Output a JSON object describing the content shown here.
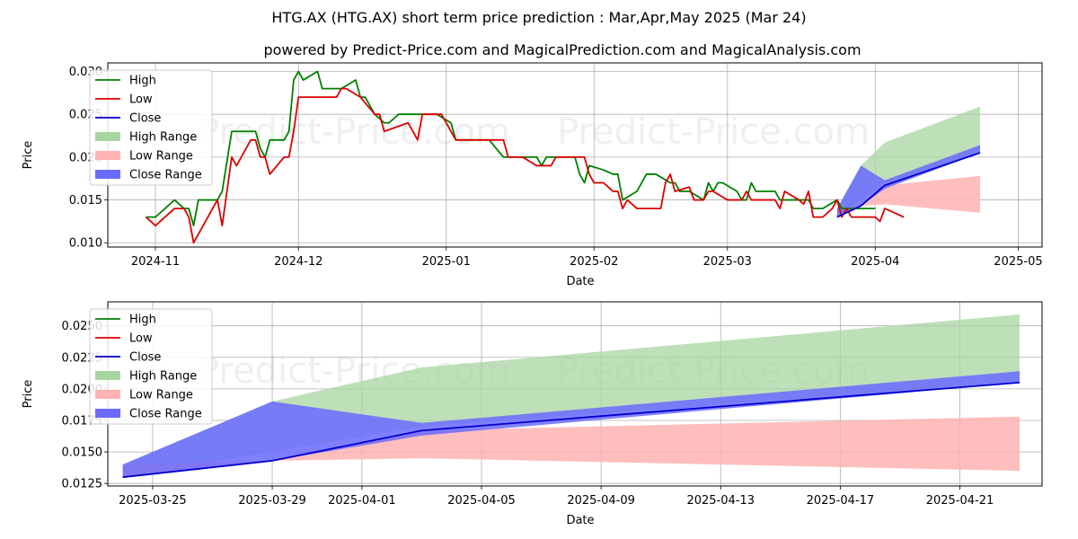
{
  "title": "HTG.AX (HTG.AX) short term price prediction : Mar,Apr,May 2025 (Mar 24)",
  "subtitle": "powered by Predict-Price.com and MagicalPrediction.com and MagicalAnalysis.com",
  "watermark": "Predict-Price.com",
  "colors": {
    "high": "#008000",
    "low": "#dd0000",
    "close": "#0000cc",
    "high_range": "#a8d5a2",
    "low_range": "#ffb3b3",
    "close_range": "#6a6aff",
    "grid": "#b0b0b0"
  },
  "chart_data": [
    {
      "type": "line",
      "xlabel": "Date",
      "ylabel": "Price",
      "ylim": [
        0.0095,
        0.031
      ],
      "xlim": [
        "2024-10-22",
        "2025-05-06"
      ],
      "grid": true,
      "legend_position": "upper left",
      "x_ticks": [
        "2024-11",
        "2024-12",
        "2025-01",
        "2025-02",
        "2025-03",
        "2025-04",
        "2025-05"
      ],
      "y_ticks": [
        "0.010",
        "0.015",
        "0.020",
        "0.025",
        "0.030"
      ],
      "legend": [
        "High",
        "Low",
        "Close",
        "High Range",
        "Low Range",
        "Close Range"
      ],
      "series": [
        {
          "name": "High",
          "points": [
            [
              "2024-10-30",
              0.013
            ],
            [
              "2024-11-01",
              0.013
            ],
            [
              "2024-11-05",
              0.015
            ],
            [
              "2024-11-07",
              0.014
            ],
            [
              "2024-11-08",
              0.014
            ],
            [
              "2024-11-09",
              0.012
            ],
            [
              "2024-11-10",
              0.015
            ],
            [
              "2024-11-13",
              0.015
            ],
            [
              "2024-11-14",
              0.015
            ],
            [
              "2024-11-15",
              0.016
            ],
            [
              "2024-11-17",
              0.023
            ],
            [
              "2024-11-20",
              0.023
            ],
            [
              "2024-11-22",
              0.023
            ],
            [
              "2024-11-23",
              0.021
            ],
            [
              "2024-11-24",
              0.02
            ],
            [
              "2024-11-25",
              0.022
            ],
            [
              "2024-11-27",
              0.022
            ],
            [
              "2024-11-28",
              0.022
            ],
            [
              "2024-11-29",
              0.023
            ],
            [
              "2024-11-30",
              0.029
            ],
            [
              "2024-12-01",
              0.03
            ],
            [
              "2024-12-02",
              0.029
            ],
            [
              "2024-12-05",
              0.03
            ],
            [
              "2024-12-06",
              0.028
            ],
            [
              "2024-12-08",
              0.028
            ],
            [
              "2024-12-09",
              0.028
            ],
            [
              "2024-12-10",
              0.028
            ],
            [
              "2024-12-13",
              0.029
            ],
            [
              "2024-12-14",
              0.027
            ],
            [
              "2024-12-15",
              0.027
            ],
            [
              "2024-12-17",
              0.025
            ],
            [
              "2024-12-19",
              0.024
            ],
            [
              "2024-12-20",
              0.024
            ],
            [
              "2024-12-22",
              0.025
            ],
            [
              "2024-12-26",
              0.025
            ],
            [
              "2024-12-27",
              0.025
            ],
            [
              "2024-12-30",
              0.025
            ],
            [
              "2025-01-02",
              0.024
            ],
            [
              "2025-01-03",
              0.022
            ],
            [
              "2025-01-09",
              0.022
            ],
            [
              "2025-01-10",
              0.022
            ],
            [
              "2025-01-13",
              0.02
            ],
            [
              "2025-01-16",
              0.02
            ],
            [
              "2025-01-17",
              0.02
            ],
            [
              "2025-01-20",
              0.02
            ],
            [
              "2025-01-21",
              0.019
            ],
            [
              "2025-01-22",
              0.02
            ],
            [
              "2025-01-25",
              0.02
            ],
            [
              "2025-01-27",
              0.02
            ],
            [
              "2025-01-28",
              0.02
            ],
            [
              "2025-01-29",
              0.018
            ],
            [
              "2025-01-30",
              0.017
            ],
            [
              "2025-01-31",
              0.019
            ],
            [
              "2025-02-03",
              0.0185
            ],
            [
              "2025-02-05",
              0.018
            ],
            [
              "2025-02-06",
              0.018
            ],
            [
              "2025-02-07",
              0.015
            ],
            [
              "2025-02-10",
              0.016
            ],
            [
              "2025-02-12",
              0.018
            ],
            [
              "2025-02-13",
              0.018
            ],
            [
              "2025-02-14",
              0.018
            ],
            [
              "2025-02-17",
              0.017
            ],
            [
              "2025-02-18",
              0.017
            ],
            [
              "2025-02-19",
              0.016
            ],
            [
              "2025-02-20",
              0.016
            ],
            [
              "2025-02-21",
              0.016
            ],
            [
              "2025-02-24",
              0.015
            ],
            [
              "2025-02-25",
              0.017
            ],
            [
              "2025-02-26",
              0.016
            ],
            [
              "2025-02-27",
              0.017
            ],
            [
              "2025-02-28",
              0.017
            ],
            [
              "2025-03-03",
              0.016
            ],
            [
              "2025-03-04",
              0.015
            ],
            [
              "2025-03-05",
              0.015
            ],
            [
              "2025-03-06",
              0.017
            ],
            [
              "2025-03-07",
              0.016
            ],
            [
              "2025-03-11",
              0.016
            ],
            [
              "2025-03-12",
              0.015
            ],
            [
              "2025-03-17",
              0.015
            ],
            [
              "2025-03-18",
              0.015
            ],
            [
              "2025-03-19",
              0.014
            ],
            [
              "2025-03-21",
              0.014
            ],
            [
              "2025-03-24",
              0.015
            ],
            [
              "2025-03-25",
              0.014
            ],
            [
              "2025-03-31",
              0.014
            ],
            [
              "2025-04-01",
              0.014
            ]
          ]
        },
        {
          "name": "Low",
          "points": [
            [
              "2024-10-30",
              0.013
            ],
            [
              "2024-11-01",
              0.012
            ],
            [
              "2024-11-05",
              0.014
            ],
            [
              "2024-11-07",
              0.014
            ],
            [
              "2024-11-08",
              0.013
            ],
            [
              "2024-11-09",
              0.01
            ],
            [
              "2024-11-13",
              0.014
            ],
            [
              "2024-11-14",
              0.015
            ],
            [
              "2024-11-15",
              0.012
            ],
            [
              "2024-11-17",
              0.02
            ],
            [
              "2024-11-18",
              0.019
            ],
            [
              "2024-11-19",
              0.02
            ],
            [
              "2024-11-21",
              0.022
            ],
            [
              "2024-11-22",
              0.022
            ],
            [
              "2024-11-23",
              0.02
            ],
            [
              "2024-11-24",
              0.02
            ],
            [
              "2024-11-25",
              0.018
            ],
            [
              "2024-11-28",
              0.02
            ],
            [
              "2024-11-29",
              0.02
            ],
            [
              "2024-11-30",
              0.023
            ],
            [
              "2024-12-01",
              0.027
            ],
            [
              "2024-12-06",
              0.027
            ],
            [
              "2024-12-09",
              0.027
            ],
            [
              "2024-12-10",
              0.028
            ],
            [
              "2024-12-11",
              0.028
            ],
            [
              "2024-12-14",
              0.027
            ],
            [
              "2024-12-17",
              0.025
            ],
            [
              "2024-12-18",
              0.025
            ],
            [
              "2024-12-19",
              0.023
            ],
            [
              "2024-12-24",
              0.024
            ],
            [
              "2024-12-26",
              0.022
            ],
            [
              "2024-12-27",
              0.025
            ],
            [
              "2024-12-31",
              0.025
            ],
            [
              "2025-01-03",
              0.022
            ],
            [
              "2025-01-07",
              0.022
            ],
            [
              "2025-01-10",
              0.022
            ],
            [
              "2025-01-13",
              0.022
            ],
            [
              "2025-01-14",
              0.02
            ],
            [
              "2025-01-17",
              0.02
            ],
            [
              "2025-01-20",
              0.019
            ],
            [
              "2025-01-23",
              0.019
            ],
            [
              "2025-01-24",
              0.02
            ],
            [
              "2025-01-27",
              0.02
            ],
            [
              "2025-01-30",
              0.02
            ],
            [
              "2025-01-31",
              0.018
            ],
            [
              "2025-02-01",
              0.017
            ],
            [
              "2025-02-03",
              0.017
            ],
            [
              "2025-02-05",
              0.016
            ],
            [
              "2025-02-06",
              0.016
            ],
            [
              "2025-02-07",
              0.014
            ],
            [
              "2025-02-08",
              0.015
            ],
            [
              "2025-02-10",
              0.014
            ],
            [
              "2025-02-15",
              0.014
            ],
            [
              "2025-02-16",
              0.017
            ],
            [
              "2025-02-17",
              0.018
            ],
            [
              "2025-02-18",
              0.016
            ],
            [
              "2025-02-21",
              0.0165
            ],
            [
              "2025-02-22",
              0.015
            ],
            [
              "2025-02-24",
              0.015
            ],
            [
              "2025-02-25",
              0.016
            ],
            [
              "2025-02-26",
              0.016
            ],
            [
              "2025-03-01",
              0.015
            ],
            [
              "2025-03-03",
              0.015
            ],
            [
              "2025-03-04",
              0.015
            ],
            [
              "2025-03-05",
              0.016
            ],
            [
              "2025-03-06",
              0.015
            ],
            [
              "2025-03-11",
              0.015
            ],
            [
              "2025-03-12",
              0.014
            ],
            [
              "2025-03-13",
              0.016
            ],
            [
              "2025-03-16",
              0.015
            ],
            [
              "2025-03-17",
              0.0145
            ],
            [
              "2025-03-18",
              0.016
            ],
            [
              "2025-03-19",
              0.013
            ],
            [
              "2025-03-21",
              0.013
            ],
            [
              "2025-03-23",
              0.014
            ],
            [
              "2025-03-24",
              0.015
            ],
            [
              "2025-03-25",
              0.013
            ],
            [
              "2025-03-26",
              0.014
            ],
            [
              "2025-03-27",
              0.013
            ],
            [
              "2025-03-31",
              0.013
            ],
            [
              "2025-04-01",
              0.013
            ],
            [
              "2025-04-02",
              0.0125
            ],
            [
              "2025-04-03",
              0.014
            ],
            [
              "2025-04-05",
              0.0135
            ],
            [
              "2025-04-07",
              0.013
            ]
          ]
        },
        {
          "name": "Close",
          "points": [
            [
              "2025-03-24",
              0.013
            ],
            [
              "2025-03-29",
              0.0143
            ],
            [
              "2025-04-03",
              0.0167
            ],
            [
              "2025-04-23",
              0.0205
            ]
          ]
        }
      ],
      "ranges": [
        {
          "name": "High Range",
          "x": [
            "2025-03-24",
            "2025-03-29",
            "2025-04-03",
            "2025-04-23"
          ],
          "upper": [
            0.014,
            0.019,
            0.0217,
            0.0259
          ],
          "lower": [
            0.013,
            0.015,
            0.017,
            0.0205
          ]
        },
        {
          "name": "Low Range",
          "x": [
            "2025-03-24",
            "2025-03-29",
            "2025-04-03",
            "2025-04-23"
          ],
          "upper": [
            0.014,
            0.0143,
            0.0167,
            0.0178
          ],
          "lower": [
            0.013,
            0.0143,
            0.0145,
            0.0135
          ]
        },
        {
          "name": "Close Range",
          "x": [
            "2025-03-24",
            "2025-03-29",
            "2025-04-03",
            "2025-04-23"
          ],
          "upper": [
            0.014,
            0.019,
            0.0173,
            0.0214
          ],
          "lower": [
            0.013,
            0.0143,
            0.0163,
            0.0205
          ]
        }
      ]
    },
    {
      "type": "line",
      "xlabel": "Date",
      "ylabel": "Price",
      "ylim": [
        0.0123,
        0.0269
      ],
      "xlim": [
        "2025-03-23 12:00",
        "2025-04-23 18:00"
      ],
      "grid": true,
      "legend_position": "upper left",
      "x_ticks": [
        "2025-03-25",
        "2025-03-29",
        "2025-04-01",
        "2025-04-05",
        "2025-04-09",
        "2025-04-13",
        "2025-04-17",
        "2025-04-21"
      ],
      "y_ticks": [
        "0.0125",
        "0.0150",
        "0.0175",
        "0.0200",
        "0.0225",
        "0.0250"
      ],
      "legend": [
        "High",
        "Low",
        "Close",
        "High Range",
        "Low Range",
        "Close Range"
      ],
      "series": [
        {
          "name": "Close",
          "points": [
            [
              "2025-03-24",
              0.013
            ],
            [
              "2025-03-29",
              0.0143
            ],
            [
              "2025-04-03",
              0.0167
            ],
            [
              "2025-04-23",
              0.0205
            ]
          ]
        }
      ],
      "ranges": [
        {
          "name": "High Range",
          "x": [
            "2025-03-24",
            "2025-03-29",
            "2025-04-03",
            "2025-04-23"
          ],
          "upper": [
            0.014,
            0.019,
            0.0217,
            0.0259
          ],
          "lower": [
            0.013,
            0.015,
            0.017,
            0.0205
          ]
        },
        {
          "name": "Low Range",
          "x": [
            "2025-03-24",
            "2025-03-29",
            "2025-04-03",
            "2025-04-23"
          ],
          "upper": [
            0.014,
            0.0143,
            0.0167,
            0.0178
          ],
          "lower": [
            0.013,
            0.0143,
            0.0145,
            0.0135
          ]
        },
        {
          "name": "Close Range",
          "x": [
            "2025-03-24",
            "2025-03-29",
            "2025-04-03",
            "2025-04-23"
          ],
          "upper": [
            0.014,
            0.019,
            0.0173,
            0.0214
          ],
          "lower": [
            0.013,
            0.0143,
            0.0163,
            0.0205
          ]
        }
      ]
    }
  ]
}
